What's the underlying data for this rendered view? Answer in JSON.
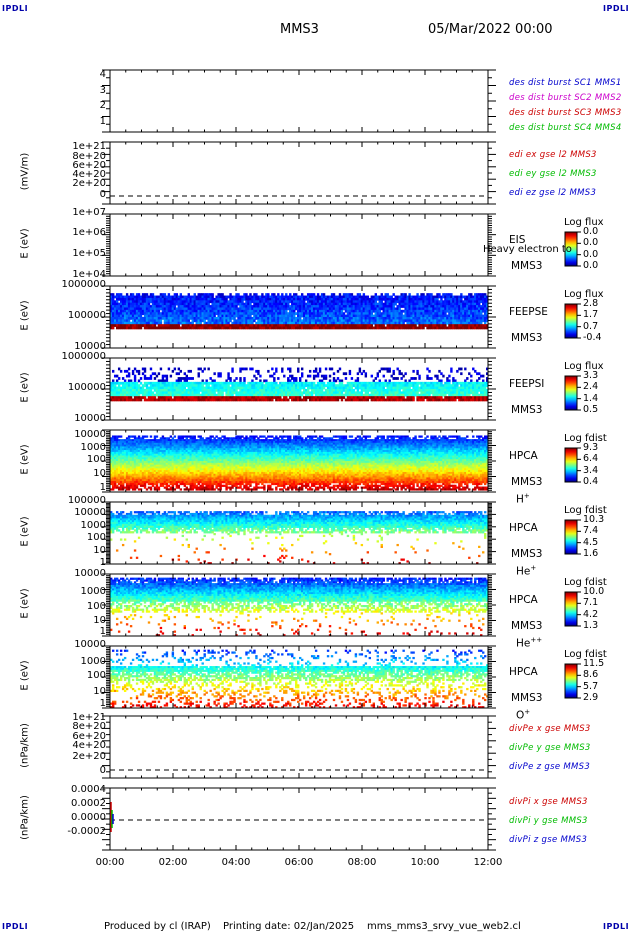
{
  "header": {
    "corner_label": "IPDLI",
    "spacecraft": "MMS3",
    "datetime": "05/Mar/2022 00:00"
  },
  "footer": {
    "produced": "Produced by cl (IRAP)",
    "printing": "Printing date: 02/Jan/2025",
    "file": "mms_mms3_srvy_vue_web2.cl"
  },
  "x_axis": {
    "ticks": [
      "00:00",
      "02:00",
      "04:00",
      "06:00",
      "08:00",
      "10:00",
      "12:00"
    ]
  },
  "colors": {
    "red": "#cc0000",
    "green": "#00bb00",
    "blue": "#0000cc",
    "magenta": "#cc00cc"
  },
  "chart_data": [
    {
      "type": "line",
      "panel": "burst",
      "yticks": [
        "4",
        "3",
        "2",
        "1"
      ],
      "ylabel": "",
      "legend": [
        {
          "text": "des dist burst SC1 MMS1",
          "color": "#0000cc"
        },
        {
          "text": "des dist burst SC2 MMS2",
          "color": "#cc00cc"
        },
        {
          "text": "des dist burst SC3 MMS3",
          "color": "#cc0000"
        },
        {
          "text": "des dist burst SC4 MMS4",
          "color": "#00bb00"
        }
      ],
      "ylim": [
        0.5,
        4.5
      ],
      "series": []
    },
    {
      "type": "line",
      "panel": "edi",
      "ylabel": "(mV/m)",
      "yticks": [
        "1e+21",
        "8e+20",
        "6e+20",
        "4e+20",
        "2e+20",
        "0"
      ],
      "legend": [
        {
          "text": "edi ex gse l2 MMS3",
          "color": "#cc0000"
        },
        {
          "text": "edi ey gse l2 MMS3",
          "color": "#00bb00"
        },
        {
          "text": "edi ez gse l2 MMS3",
          "color": "#0000cc"
        }
      ],
      "ylim": [
        0,
        1e+21
      ],
      "zero_line": true
    },
    {
      "type": "heatmap",
      "panel": "eis",
      "ylabel": "E (eV)",
      "yticks": [
        "1e+07",
        "1e+06",
        "1e+05",
        "1e+04"
      ],
      "instrument": [
        "EIS",
        "MMS3"
      ],
      "overlay_text": "Heavy electron to",
      "colorbar": {
        "title": "Log flux",
        "values": [
          "0.0",
          "0.0",
          "0.0",
          "0.0"
        ]
      },
      "ylim": [
        10000.0,
        10000000.0
      ],
      "empty": true
    },
    {
      "type": "heatmap",
      "panel": "feepse",
      "ylabel": "E (eV)",
      "yticks": [
        "1000000",
        "100000",
        "10000"
      ],
      "instrument": [
        "FEEPSE",
        "MMS3"
      ],
      "colorbar": {
        "title": "Log flux",
        "values": [
          "2.8",
          "1.7",
          "0.7",
          "-0.4"
        ]
      },
      "ylim": [
        10000,
        1000000
      ]
    },
    {
      "type": "heatmap",
      "panel": "feepsi",
      "ylabel": "E (eV)",
      "yticks": [
        "1000000",
        "100000",
        "10000"
      ],
      "instrument": [
        "FEEPSI",
        "MMS3"
      ],
      "colorbar": {
        "title": "Log flux",
        "values": [
          "3.3",
          "2.4",
          "1.4",
          "0.5"
        ]
      },
      "ylim": [
        10000,
        1000000
      ]
    },
    {
      "type": "heatmap",
      "panel": "hpca-h",
      "ylabel": "E (eV)",
      "yticks": [
        "10000",
        "1000",
        "100",
        "10",
        "1"
      ],
      "instrument": [
        "HPCA",
        "MMS3"
      ],
      "species": "H",
      "species_sup": "+",
      "colorbar": {
        "title": "Log fdist",
        "values": [
          "9.3",
          "6.4",
          "3.4",
          "0.4"
        ]
      },
      "ylim": [
        1,
        20000
      ]
    },
    {
      "type": "heatmap",
      "panel": "hpca-he",
      "ylabel": "E (eV)",
      "yticks": [
        "100000",
        "10000",
        "1000",
        "100",
        "10",
        "1"
      ],
      "instrument": [
        "HPCA",
        "MMS3"
      ],
      "species": "He",
      "species_sup": "+",
      "colorbar": {
        "title": "Log fdist",
        "values": [
          "10.3",
          "7.4",
          "4.5",
          "1.6"
        ]
      },
      "ylim": [
        1,
        100000
      ]
    },
    {
      "type": "heatmap",
      "panel": "hpca-hepp",
      "ylabel": "E (eV)",
      "yticks": [
        "10000",
        "1000",
        "100",
        "10",
        "1"
      ],
      "instrument": [
        "HPCA",
        "MMS3"
      ],
      "species": "He",
      "species_sup": "++",
      "colorbar": {
        "title": "Log fdist",
        "values": [
          "10.0",
          "7.1",
          "4.2",
          "1.3"
        ]
      },
      "ylim": [
        1,
        20000
      ]
    },
    {
      "type": "heatmap",
      "panel": "hpca-o",
      "ylabel": "E (eV)",
      "yticks": [
        "10000",
        "1000",
        "100",
        "10",
        "1"
      ],
      "instrument": [
        "HPCA",
        "MMS3"
      ],
      "species": "O",
      "species_sup": "+",
      "colorbar": {
        "title": "Log fdist",
        "values": [
          "11.5",
          "8.6",
          "5.7",
          "2.9"
        ]
      },
      "ylim": [
        1,
        20000
      ]
    },
    {
      "type": "line",
      "panel": "divpe",
      "ylabel": "(nPa/km)",
      "yticks": [
        "1e+21",
        "8e+20",
        "6e+20",
        "4e+20",
        "2e+20",
        "0"
      ],
      "legend": [
        {
          "text": "divPe x gse MMS3",
          "color": "#cc0000"
        },
        {
          "text": "divPe y gse MMS3",
          "color": "#00bb00"
        },
        {
          "text": "divPe z gse MMS3",
          "color": "#0000cc"
        }
      ],
      "ylim": [
        0,
        1e+21
      ],
      "zero_line": true
    },
    {
      "type": "line",
      "panel": "divpi",
      "ylabel": "(nPa/km)",
      "yticks": [
        "0.0004",
        "0.0002",
        "0.0000",
        "-0.0002"
      ],
      "legend": [
        {
          "text": "divPi x gse MMS3",
          "color": "#cc0000"
        },
        {
          "text": "divPi y gse MMS3",
          "color": "#00bb00"
        },
        {
          "text": "divPi z gse MMS3",
          "color": "#0000cc"
        }
      ],
      "ylim": [
        -0.0003,
        0.0004
      ],
      "zero_line": true
    }
  ]
}
